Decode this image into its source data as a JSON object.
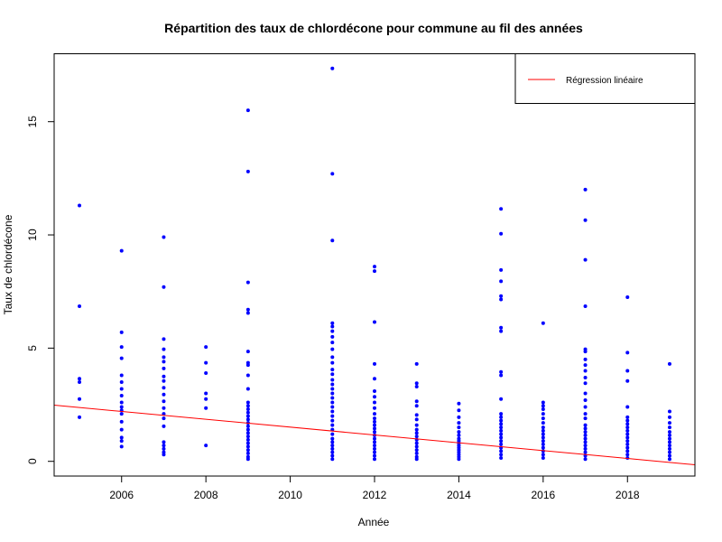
{
  "chart_data": {
    "type": "scatter",
    "title": "Répartition des taux de chlordécone pour commune au fil des années",
    "xlabel": "Année",
    "ylabel": "Taux de chlordécone",
    "xlim": [
      2004.4,
      2019.6
    ],
    "ylim": [
      -0.65,
      18.0
    ],
    "x_ticks": [
      2006,
      2008,
      2010,
      2012,
      2014,
      2016,
      2018
    ],
    "y_ticks": [
      0,
      5,
      10,
      15
    ],
    "grid": false,
    "legend_position": "top-right",
    "colors": {
      "points": "#0000ff",
      "regression": "#ff0000"
    },
    "series": [
      {
        "kind": "points",
        "points": [
          [
            2005,
            11.3
          ],
          [
            2005,
            6.85
          ],
          [
            2005,
            3.65
          ],
          [
            2005,
            3.5
          ],
          [
            2005,
            2.75
          ],
          [
            2005,
            1.95
          ],
          [
            2006,
            9.3
          ],
          [
            2006,
            5.7
          ],
          [
            2006,
            5.05
          ],
          [
            2006,
            4.55
          ],
          [
            2006,
            3.8
          ],
          [
            2006,
            3.5
          ],
          [
            2006,
            3.2
          ],
          [
            2006,
            2.9
          ],
          [
            2006,
            2.6
          ],
          [
            2006,
            2.4
          ],
          [
            2006,
            2.25
          ],
          [
            2006,
            2.1
          ],
          [
            2006,
            1.75
          ],
          [
            2006,
            1.4
          ],
          [
            2006,
            1.05
          ],
          [
            2006,
            0.9
          ],
          [
            2006,
            0.65
          ],
          [
            2007,
            9.9
          ],
          [
            2007,
            7.7
          ],
          [
            2007,
            5.4
          ],
          [
            2007,
            4.95
          ],
          [
            2007,
            4.6
          ],
          [
            2007,
            4.4
          ],
          [
            2007,
            4.1
          ],
          [
            2007,
            3.75
          ],
          [
            2007,
            3.55
          ],
          [
            2007,
            3.25
          ],
          [
            2007,
            2.95
          ],
          [
            2007,
            2.65
          ],
          [
            2007,
            2.35
          ],
          [
            2007,
            2.1
          ],
          [
            2007,
            1.9
          ],
          [
            2007,
            1.55
          ],
          [
            2007,
            0.85
          ],
          [
            2007,
            0.7
          ],
          [
            2007,
            0.55
          ],
          [
            2007,
            0.4
          ],
          [
            2007,
            0.3
          ],
          [
            2008,
            5.05
          ],
          [
            2008,
            4.35
          ],
          [
            2008,
            3.9
          ],
          [
            2008,
            3.0
          ],
          [
            2008,
            2.75
          ],
          [
            2008,
            2.35
          ],
          [
            2008,
            0.7
          ],
          [
            2009,
            15.5
          ],
          [
            2009,
            12.8
          ],
          [
            2009,
            7.9
          ],
          [
            2009,
            6.7
          ],
          [
            2009,
            6.55
          ],
          [
            2009,
            4.85
          ],
          [
            2009,
            4.35
          ],
          [
            2009,
            4.25
          ],
          [
            2009,
            3.8
          ],
          [
            2009,
            3.2
          ],
          [
            2009,
            2.6
          ],
          [
            2009,
            2.45
          ],
          [
            2009,
            2.3
          ],
          [
            2009,
            2.15
          ],
          [
            2009,
            2.0
          ],
          [
            2009,
            1.85
          ],
          [
            2009,
            1.7
          ],
          [
            2009,
            1.55
          ],
          [
            2009,
            1.4
          ],
          [
            2009,
            1.25
          ],
          [
            2009,
            1.1
          ],
          [
            2009,
            0.95
          ],
          [
            2009,
            0.8
          ],
          [
            2009,
            0.65
          ],
          [
            2009,
            0.5
          ],
          [
            2009,
            0.35
          ],
          [
            2009,
            0.2
          ],
          [
            2009,
            0.1
          ],
          [
            2011,
            17.35
          ],
          [
            2011,
            12.7
          ],
          [
            2011,
            9.75
          ],
          [
            2011,
            6.1
          ],
          [
            2011,
            5.95
          ],
          [
            2011,
            5.75
          ],
          [
            2011,
            5.5
          ],
          [
            2011,
            5.25
          ],
          [
            2011,
            4.95
          ],
          [
            2011,
            4.6
          ],
          [
            2011,
            4.35
          ],
          [
            2011,
            4.05
          ],
          [
            2011,
            3.85
          ],
          [
            2011,
            3.6
          ],
          [
            2011,
            3.4
          ],
          [
            2011,
            3.2
          ],
          [
            2011,
            3.0
          ],
          [
            2011,
            2.8
          ],
          [
            2011,
            2.6
          ],
          [
            2011,
            2.4
          ],
          [
            2011,
            2.2
          ],
          [
            2011,
            2.0
          ],
          [
            2011,
            1.8
          ],
          [
            2011,
            1.6
          ],
          [
            2011,
            1.4
          ],
          [
            2011,
            1.2
          ],
          [
            2011,
            1.0
          ],
          [
            2011,
            0.85
          ],
          [
            2011,
            0.7
          ],
          [
            2011,
            0.55
          ],
          [
            2011,
            0.4
          ],
          [
            2011,
            0.25
          ],
          [
            2011,
            0.1
          ],
          [
            2012,
            8.6
          ],
          [
            2012,
            8.4
          ],
          [
            2012,
            6.15
          ],
          [
            2012,
            4.3
          ],
          [
            2012,
            3.65
          ],
          [
            2012,
            3.1
          ],
          [
            2012,
            2.85
          ],
          [
            2012,
            2.6
          ],
          [
            2012,
            2.35
          ],
          [
            2012,
            2.1
          ],
          [
            2012,
            1.9
          ],
          [
            2012,
            1.75
          ],
          [
            2012,
            1.6
          ],
          [
            2012,
            1.45
          ],
          [
            2012,
            1.3
          ],
          [
            2012,
            1.15
          ],
          [
            2012,
            1.0
          ],
          [
            2012,
            0.85
          ],
          [
            2012,
            0.7
          ],
          [
            2012,
            0.55
          ],
          [
            2012,
            0.4
          ],
          [
            2012,
            0.25
          ],
          [
            2012,
            0.1
          ],
          [
            2013,
            4.3
          ],
          [
            2013,
            3.45
          ],
          [
            2013,
            3.3
          ],
          [
            2013,
            2.65
          ],
          [
            2013,
            2.45
          ],
          [
            2013,
            2.05
          ],
          [
            2013,
            1.85
          ],
          [
            2013,
            1.6
          ],
          [
            2013,
            1.4
          ],
          [
            2013,
            1.25
          ],
          [
            2013,
            1.1
          ],
          [
            2013,
            0.95
          ],
          [
            2013,
            0.8
          ],
          [
            2013,
            0.65
          ],
          [
            2013,
            0.5
          ],
          [
            2013,
            0.35
          ],
          [
            2013,
            0.2
          ],
          [
            2013,
            0.1
          ],
          [
            2014,
            2.55
          ],
          [
            2014,
            2.25
          ],
          [
            2014,
            1.95
          ],
          [
            2014,
            1.7
          ],
          [
            2014,
            1.5
          ],
          [
            2014,
            1.3
          ],
          [
            2014,
            1.15
          ],
          [
            2014,
            1.0
          ],
          [
            2014,
            0.9
          ],
          [
            2014,
            0.8
          ],
          [
            2014,
            0.7
          ],
          [
            2014,
            0.6
          ],
          [
            2014,
            0.5
          ],
          [
            2014,
            0.4
          ],
          [
            2014,
            0.3
          ],
          [
            2014,
            0.2
          ],
          [
            2014,
            0.1
          ],
          [
            2015,
            11.15
          ],
          [
            2015,
            10.05
          ],
          [
            2015,
            8.45
          ],
          [
            2015,
            7.95
          ],
          [
            2015,
            7.3
          ],
          [
            2015,
            7.15
          ],
          [
            2015,
            5.9
          ],
          [
            2015,
            5.75
          ],
          [
            2015,
            3.95
          ],
          [
            2015,
            3.8
          ],
          [
            2015,
            2.75
          ],
          [
            2015,
            2.1
          ],
          [
            2015,
            1.95
          ],
          [
            2015,
            1.8
          ],
          [
            2015,
            1.65
          ],
          [
            2015,
            1.5
          ],
          [
            2015,
            1.35
          ],
          [
            2015,
            1.2
          ],
          [
            2015,
            1.05
          ],
          [
            2015,
            0.9
          ],
          [
            2015,
            0.75
          ],
          [
            2015,
            0.6
          ],
          [
            2015,
            0.45
          ],
          [
            2015,
            0.3
          ],
          [
            2015,
            0.15
          ],
          [
            2016,
            6.1
          ],
          [
            2016,
            2.6
          ],
          [
            2016,
            2.45
          ],
          [
            2016,
            2.3
          ],
          [
            2016,
            2.1
          ],
          [
            2016,
            1.9
          ],
          [
            2016,
            1.7
          ],
          [
            2016,
            1.5
          ],
          [
            2016,
            1.35
          ],
          [
            2016,
            1.2
          ],
          [
            2016,
            1.05
          ],
          [
            2016,
            0.9
          ],
          [
            2016,
            0.75
          ],
          [
            2016,
            0.6
          ],
          [
            2016,
            0.45
          ],
          [
            2016,
            0.3
          ],
          [
            2016,
            0.15
          ],
          [
            2017,
            12.0
          ],
          [
            2017,
            10.65
          ],
          [
            2017,
            8.9
          ],
          [
            2017,
            6.85
          ],
          [
            2017,
            4.95
          ],
          [
            2017,
            4.85
          ],
          [
            2017,
            4.5
          ],
          [
            2017,
            4.25
          ],
          [
            2017,
            4.0
          ],
          [
            2017,
            3.7
          ],
          [
            2017,
            3.45
          ],
          [
            2017,
            3.0
          ],
          [
            2017,
            2.7
          ],
          [
            2017,
            2.4
          ],
          [
            2017,
            2.1
          ],
          [
            2017,
            1.9
          ],
          [
            2017,
            1.6
          ],
          [
            2017,
            1.45
          ],
          [
            2017,
            1.3
          ],
          [
            2017,
            1.15
          ],
          [
            2017,
            1.0
          ],
          [
            2017,
            0.85
          ],
          [
            2017,
            0.7
          ],
          [
            2017,
            0.55
          ],
          [
            2017,
            0.4
          ],
          [
            2017,
            0.25
          ],
          [
            2017,
            0.1
          ],
          [
            2018,
            7.25
          ],
          [
            2018,
            4.8
          ],
          [
            2018,
            4.0
          ],
          [
            2018,
            3.55
          ],
          [
            2018,
            2.4
          ],
          [
            2018,
            1.95
          ],
          [
            2018,
            1.8
          ],
          [
            2018,
            1.65
          ],
          [
            2018,
            1.5
          ],
          [
            2018,
            1.35
          ],
          [
            2018,
            1.2
          ],
          [
            2018,
            1.05
          ],
          [
            2018,
            0.9
          ],
          [
            2018,
            0.75
          ],
          [
            2018,
            0.6
          ],
          [
            2018,
            0.45
          ],
          [
            2018,
            0.3
          ],
          [
            2018,
            0.15
          ],
          [
            2019,
            4.3
          ],
          [
            2019,
            2.2
          ],
          [
            2019,
            1.95
          ],
          [
            2019,
            1.7
          ],
          [
            2019,
            1.5
          ],
          [
            2019,
            1.3
          ],
          [
            2019,
            1.15
          ],
          [
            2019,
            1.0
          ],
          [
            2019,
            0.85
          ],
          [
            2019,
            0.7
          ],
          [
            2019,
            0.55
          ],
          [
            2019,
            0.4
          ],
          [
            2019,
            0.25
          ],
          [
            2019,
            0.1
          ]
        ]
      },
      {
        "kind": "line",
        "name": "Régression linéaire",
        "x": [
          2004.4,
          2019.6
        ],
        "y": [
          2.48,
          -0.15
        ]
      }
    ]
  }
}
